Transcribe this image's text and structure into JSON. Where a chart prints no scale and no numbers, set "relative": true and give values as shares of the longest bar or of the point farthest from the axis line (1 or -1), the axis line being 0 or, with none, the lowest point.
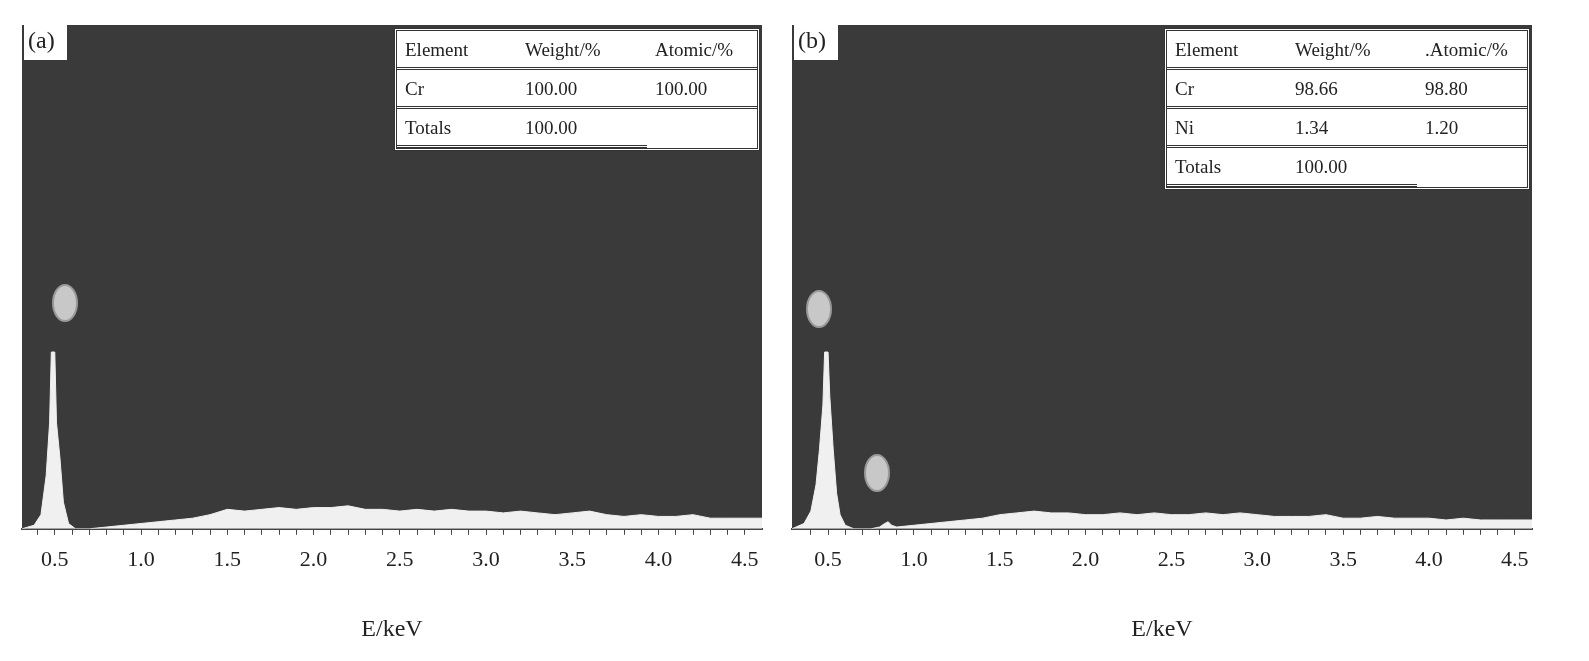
{
  "chart_data": [
    {
      "type": "area",
      "title": "(a)",
      "xlabel": "E/keV",
      "relative": true,
      "grid": false,
      "legend": false,
      "color": "#f0f0f0",
      "x": [
        0.31,
        0.38,
        0.42,
        0.45,
        0.47,
        0.48,
        0.5,
        0.51,
        0.53,
        0.55,
        0.58,
        0.62,
        0.7,
        0.8,
        0.9,
        1.0,
        1.1,
        1.2,
        1.3,
        1.4,
        1.5,
        1.6,
        1.7,
        1.8,
        1.9,
        2.0,
        2.1,
        2.2,
        2.3,
        2.4,
        2.5,
        2.6,
        2.7,
        2.8,
        2.9,
        3.0,
        3.1,
        3.2,
        3.3,
        3.4,
        3.5,
        3.6,
        3.7,
        3.8,
        3.9,
        4.0,
        4.1,
        4.2,
        4.3,
        4.4,
        4.5,
        4.6
      ],
      "values": [
        0,
        0.02,
        0.08,
        0.3,
        0.6,
        1,
        1,
        0.6,
        0.4,
        0.15,
        0.03,
        0,
        0,
        0.01,
        0.02,
        0.03,
        0.04,
        0.05,
        0.06,
        0.08,
        0.11,
        0.1,
        0.11,
        0.12,
        0.11,
        0.12,
        0.12,
        0.13,
        0.11,
        0.11,
        0.1,
        0.11,
        0.1,
        0.11,
        0.1,
        0.1,
        0.09,
        0.1,
        0.09,
        0.08,
        0.09,
        0.1,
        0.08,
        0.07,
        0.08,
        0.07,
        0.07,
        0.08,
        0.06,
        0.06,
        0.06,
        0.06
      ],
      "xlim": [
        0.31,
        4.6
      ],
      "xticks": [
        {
          "value": 0.4,
          "label": null
        },
        0.5,
        {
          "value": 0.6,
          "label": null
        },
        {
          "value": 0.7,
          "label": null
        },
        {
          "value": 0.8,
          "label": null
        },
        {
          "value": 0.9,
          "label": null
        },
        {
          "value": 1.0,
          "label": "1.0"
        },
        {
          "value": 1.1,
          "label": null
        },
        {
          "value": 1.2,
          "label": null
        },
        {
          "value": 1.3,
          "label": null
        },
        {
          "value": 1.4,
          "label": null
        },
        1.5,
        {
          "value": 1.6,
          "label": null
        },
        {
          "value": 1.7,
          "label": null
        },
        {
          "value": 1.8,
          "label": null
        },
        {
          "value": 1.9,
          "label": null
        },
        {
          "value": 2.0,
          "label": "2.0"
        },
        {
          "value": 2.1,
          "label": null
        },
        {
          "value": 2.2,
          "label": null
        },
        {
          "value": 2.3,
          "label": null
        },
        {
          "value": 2.4,
          "label": null
        },
        2.5,
        {
          "value": 2.6,
          "label": null
        },
        {
          "value": 2.7,
          "label": null
        },
        {
          "value": 2.8,
          "label": null
        },
        {
          "value": 2.9,
          "label": null
        },
        {
          "value": 3.0,
          "label": "3.0"
        },
        {
          "value": 3.1,
          "label": null
        },
        {
          "value": 3.2,
          "label": null
        },
        {
          "value": 3.3,
          "label": null
        },
        {
          "value": 3.4,
          "label": null
        },
        3.5,
        {
          "value": 3.6,
          "label": null
        },
        {
          "value": 3.7,
          "label": null
        },
        {
          "value": 3.8,
          "label": null
        },
        {
          "value": 3.9,
          "label": null
        },
        {
          "value": 4.0,
          "label": "4.0"
        },
        {
          "value": 4.1,
          "label": null
        },
        {
          "value": 4.2,
          "label": null
        },
        {
          "value": 4.3,
          "label": null
        },
        {
          "value": 4.4,
          "label": null
        },
        4.5
      ],
      "annotations": [
        "Element",
        "Weight/%",
        "Atomic/%",
        "Cr",
        "100.00",
        "100.00",
        "Totals",
        "100.00"
      ]
    },
    {
      "type": "area",
      "title": "(b)",
      "xlabel": "E/keV",
      "relative": true,
      "grid": false,
      "legend": false,
      "color": "#f0f0f0",
      "x": [
        0.29,
        0.36,
        0.4,
        0.43,
        0.45,
        0.47,
        0.48,
        0.5,
        0.51,
        0.53,
        0.55,
        0.57,
        0.6,
        0.65,
        0.7,
        0.75,
        0.8,
        0.83,
        0.85,
        0.87,
        0.9,
        1.0,
        1.1,
        1.2,
        1.3,
        1.4,
        1.5,
        1.6,
        1.7,
        1.8,
        1.9,
        2.0,
        2.1,
        2.2,
        2.3,
        2.4,
        2.5,
        2.6,
        2.7,
        2.8,
        2.9,
        3.0,
        3.1,
        3.2,
        3.3,
        3.4,
        3.5,
        3.6,
        3.7,
        3.8,
        3.9,
        4.0,
        4.1,
        4.2,
        4.3,
        4.4,
        4.5,
        4.6
      ],
      "values": [
        0,
        0.03,
        0.1,
        0.25,
        0.45,
        0.7,
        1,
        1,
        0.75,
        0.45,
        0.2,
        0.08,
        0.02,
        0,
        0,
        0,
        0.01,
        0.03,
        0.04,
        0.02,
        0.01,
        0.02,
        0.03,
        0.04,
        0.05,
        0.06,
        0.08,
        0.09,
        0.1,
        0.09,
        0.09,
        0.08,
        0.08,
        0.09,
        0.08,
        0.09,
        0.08,
        0.08,
        0.09,
        0.08,
        0.09,
        0.08,
        0.07,
        0.07,
        0.07,
        0.08,
        0.06,
        0.06,
        0.07,
        0.06,
        0.06,
        0.06,
        0.05,
        0.06,
        0.05,
        0.05,
        0.05,
        0.05
      ],
      "xlim": [
        0.29,
        4.6
      ],
      "xticks": [
        {
          "value": 0.4,
          "label": null
        },
        0.5,
        {
          "value": 0.6,
          "label": null
        },
        {
          "value": 0.7,
          "label": null
        },
        {
          "value": 0.8,
          "label": null
        },
        {
          "value": 0.9,
          "label": null
        },
        {
          "value": 1.0,
          "label": "1.0"
        },
        {
          "value": 1.1,
          "label": null
        },
        {
          "value": 1.2,
          "label": null
        },
        {
          "value": 1.3,
          "label": null
        },
        {
          "value": 1.4,
          "label": null
        },
        1.5,
        {
          "value": 1.6,
          "label": null
        },
        {
          "value": 1.7,
          "label": null
        },
        {
          "value": 1.8,
          "label": null
        },
        {
          "value": 1.9,
          "label": null
        },
        {
          "value": 2.0,
          "label": "2.0"
        },
        {
          "value": 2.1,
          "label": null
        },
        {
          "value": 2.2,
          "label": null
        },
        {
          "value": 2.3,
          "label": null
        },
        {
          "value": 2.4,
          "label": null
        },
        2.5,
        {
          "value": 2.6,
          "label": null
        },
        {
          "value": 2.7,
          "label": null
        },
        {
          "value": 2.8,
          "label": null
        },
        {
          "value": 2.9,
          "label": null
        },
        {
          "value": 3.0,
          "label": "3.0"
        },
        {
          "value": 3.1,
          "label": null
        },
        {
          "value": 3.2,
          "label": null
        },
        {
          "value": 3.3,
          "label": null
        },
        {
          "value": 3.4,
          "label": null
        },
        3.5,
        {
          "value": 3.6,
          "label": null
        },
        {
          "value": 3.7,
          "label": null
        },
        {
          "value": 3.8,
          "label": null
        },
        {
          "value": 3.9,
          "label": null
        },
        {
          "value": 4.0,
          "label": "4.0"
        },
        {
          "value": 4.1,
          "label": null
        },
        {
          "value": 4.2,
          "label": null
        },
        {
          "value": 4.3,
          "label": null
        },
        {
          "value": 4.4,
          "label": null
        },
        4.5
      ],
      "annotations": [
        "Element",
        "Weight/%",
        ".Atomic/%",
        "Cr",
        "98.66",
        "98.80",
        "Ni",
        "1.34",
        "1.20",
        "Totals",
        "100.00"
      ]
    }
  ]
}
